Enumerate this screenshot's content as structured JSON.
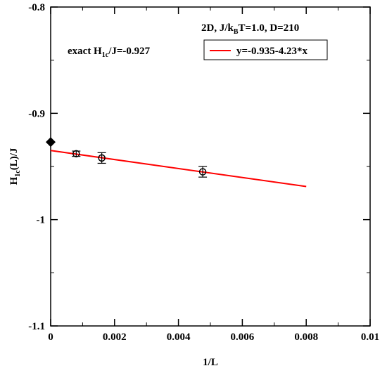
{
  "chart_data": {
    "type": "scatter",
    "xlabel": "1/L",
    "ylabel": {
      "main": "H",
      "sub": "1c",
      "rest": "(L)/J"
    },
    "xlim": [
      0,
      0.01
    ],
    "ylim": [
      -1.1,
      -0.8
    ],
    "xticks": [
      0,
      0.002,
      0.004,
      0.006,
      0.008,
      0.01
    ],
    "xtick_labels": [
      "0",
      "0.002",
      "0.004",
      "0.006",
      "0.008",
      "0.01"
    ],
    "yticks": [
      -1.1,
      -1.0,
      -0.9,
      -0.8
    ],
    "ytick_labels": [
      "-1.1",
      "-1",
      "-0.9",
      "-0.8"
    ],
    "grid": false,
    "annotations": {
      "exact": {
        "pre": "exact H",
        "sub": "1c",
        "post": "/J=-0.927"
      },
      "params": {
        "pre": "2D, J/k",
        "sub": "B",
        "post": "T=1.0, D=210"
      }
    },
    "legend": {
      "label": "y=-0.935-4.23*x",
      "placement": "top-right",
      "color": "#ff0000"
    },
    "series": [
      {
        "type": "scatter",
        "marker": "circle",
        "color": "#000000",
        "points": [
          {
            "x": 0.0008,
            "y": -0.938,
            "err": 0.0025
          },
          {
            "x": 0.0016,
            "y": -0.942,
            "err": 0.005
          },
          {
            "x": 0.00476,
            "y": -0.955,
            "err": 0.005
          }
        ]
      },
      {
        "type": "line",
        "color": "#ff0000",
        "fit": {
          "intercept": -0.935,
          "slope": -4.23
        },
        "x_range": [
          0,
          0.008
        ]
      },
      {
        "type": "scatter",
        "marker": "diamond",
        "color": "#000000",
        "points": [
          {
            "x": 0,
            "y": -0.927
          }
        ]
      }
    ]
  }
}
